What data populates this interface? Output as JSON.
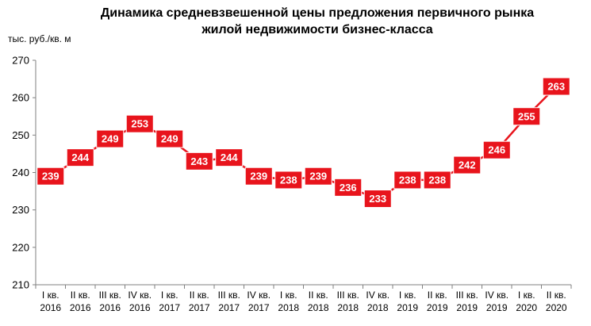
{
  "chart_data": {
    "type": "line",
    "title_line1": "Динамика средневзвешенной цены предложения первичного рынка",
    "title_line2": "жилой недвижимости бизнес-класса",
    "ylabel": "тыс. руб./кв. м",
    "ylim": [
      210,
      270
    ],
    "yticks": [
      210,
      220,
      230,
      240,
      250,
      260,
      270
    ],
    "grid": false,
    "categories": [
      [
        "I кв.",
        "2016"
      ],
      [
        "II кв.",
        "2016"
      ],
      [
        "III кв.",
        "2016"
      ],
      [
        "IV кв.",
        "2016"
      ],
      [
        "I кв.",
        "2017"
      ],
      [
        "II кв.",
        "2017"
      ],
      [
        "III кв.",
        "2017"
      ],
      [
        "IV кв.",
        "2017"
      ],
      [
        "I кв.",
        "2018"
      ],
      [
        "II кв.",
        "2018"
      ],
      [
        "III кв.",
        "2018"
      ],
      [
        "IV кв.",
        "2018"
      ],
      [
        "I кв.",
        "2019"
      ],
      [
        "II кв.",
        "2019"
      ],
      [
        "III кв.",
        "2019"
      ],
      [
        "IV кв.",
        "2019"
      ],
      [
        "I кв.",
        "2020"
      ],
      [
        "II кв.",
        "2020"
      ]
    ],
    "values": [
      239,
      244,
      249,
      253,
      249,
      243,
      244,
      239,
      238,
      239,
      236,
      233,
      238,
      238,
      242,
      246,
      255,
      263
    ],
    "colors": {
      "line": "#e8141c",
      "marker": "#e8141c",
      "label_text": "#ffffff",
      "axis": "#808080"
    }
  }
}
